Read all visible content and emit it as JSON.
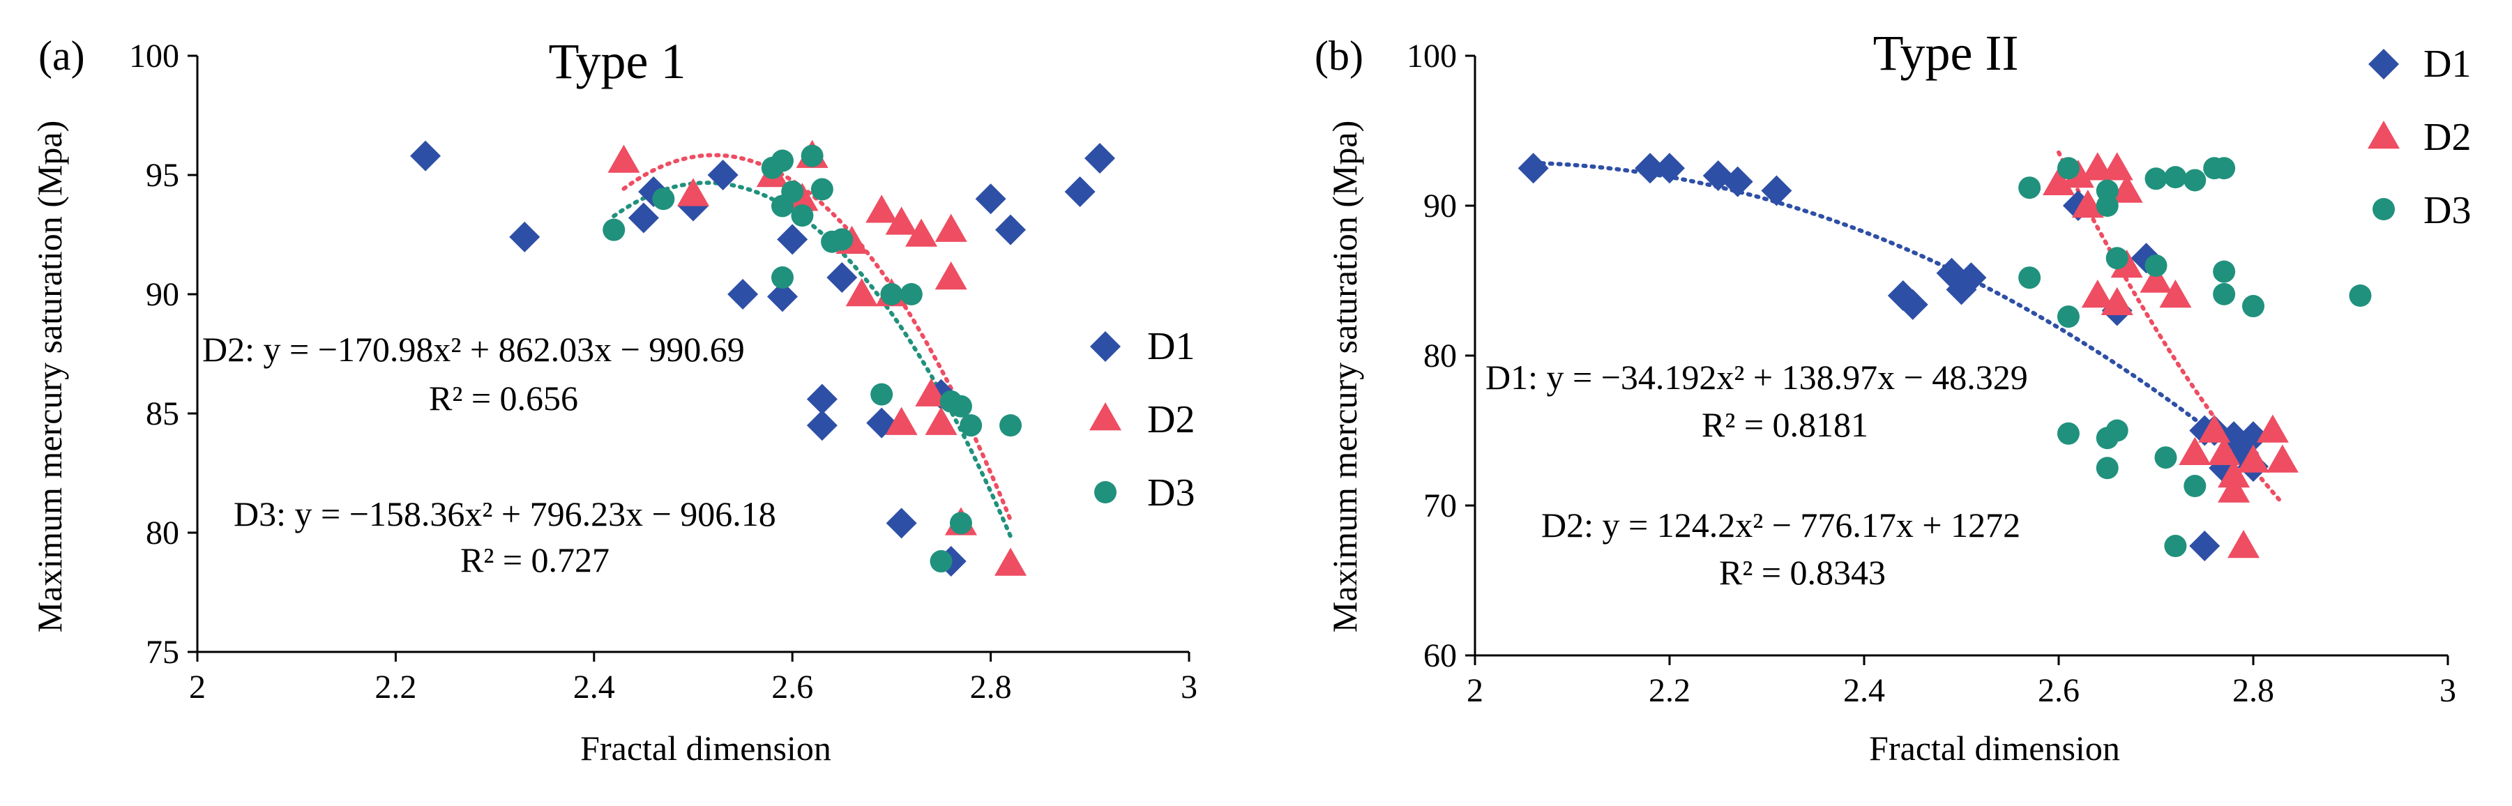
{
  "colors": {
    "D1": "#2E4FA6",
    "D2": "#EE4D62",
    "D3": "#20917D"
  },
  "chart_data": [
    {
      "type": "scatter",
      "panel_label": "(a)",
      "title": "Type 1",
      "xlabel": "Fractal dimension",
      "ylabel": "Maximum mercury saturation (Mpa)",
      "xlim": [
        2,
        3
      ],
      "ylim": [
        75,
        100
      ],
      "xticks": [
        2,
        2.2,
        2.4,
        2.6,
        2.8,
        3
      ],
      "xtick_labels": [
        "2",
        "2.2",
        "2.4",
        "2.6",
        "2.8",
        "3"
      ],
      "yticks": [
        75,
        80,
        85,
        90,
        95,
        100
      ],
      "ytick_labels": [
        "75",
        "80",
        "85",
        "90",
        "95",
        "100"
      ],
      "legend": [
        "D1",
        "D2",
        "D3"
      ],
      "series": [
        {
          "name": "D1",
          "marker": "diamond",
          "points": [
            [
              2.23,
              95.8
            ],
            [
              2.33,
              92.4
            ],
            [
              2.45,
              93.2
            ],
            [
              2.46,
              94.3
            ],
            [
              2.5,
              93.7
            ],
            [
              2.53,
              95
            ],
            [
              2.55,
              90
            ],
            [
              2.59,
              89.9
            ],
            [
              2.6,
              92.3
            ],
            [
              2.63,
              85.6
            ],
            [
              2.63,
              84.5
            ],
            [
              2.65,
              90.7
            ],
            [
              2.69,
              84.6
            ],
            [
              2.71,
              80.4
            ],
            [
              2.75,
              85.8
            ],
            [
              2.76,
              78.8
            ],
            [
              2.8,
              94
            ],
            [
              2.82,
              92.7
            ],
            [
              2.89,
              94.3
            ],
            [
              2.91,
              95.7
            ]
          ]
        },
        {
          "name": "D2",
          "marker": "triangle",
          "points": [
            [
              2.43,
              95.6
            ],
            [
              2.5,
              94.2
            ],
            [
              2.58,
              95
            ],
            [
              2.61,
              94
            ],
            [
              2.62,
              95.8
            ],
            [
              2.66,
              92.2
            ],
            [
              2.67,
              90
            ],
            [
              2.69,
              93.5
            ],
            [
              2.7,
              90
            ],
            [
              2.71,
              93
            ],
            [
              2.71,
              84.6
            ],
            [
              2.73,
              92.5
            ],
            [
              2.74,
              85.8
            ],
            [
              2.75,
              84.6
            ],
            [
              2.76,
              92.7
            ],
            [
              2.76,
              90.7
            ],
            [
              2.77,
              80.4
            ],
            [
              2.82,
              78.7
            ]
          ]
        },
        {
          "name": "D3",
          "marker": "circle",
          "points": [
            [
              2.42,
              92.7
            ],
            [
              2.47,
              94
            ],
            [
              2.58,
              95.3
            ],
            [
              2.59,
              95.6
            ],
            [
              2.59,
              93.7
            ],
            [
              2.6,
              94.3
            ],
            [
              2.61,
              93.3
            ],
            [
              2.59,
              90.7
            ],
            [
              2.62,
              95.8
            ],
            [
              2.63,
              94.4
            ],
            [
              2.64,
              92.2
            ],
            [
              2.65,
              92.3
            ],
            [
              2.7,
              90
            ],
            [
              2.72,
              90
            ],
            [
              2.69,
              85.8
            ],
            [
              2.76,
              85.5
            ],
            [
              2.77,
              85.3
            ],
            [
              2.78,
              84.5
            ],
            [
              2.82,
              84.5
            ],
            [
              2.77,
              80.4
            ],
            [
              2.75,
              78.8
            ]
          ]
        }
      ],
      "fits": [
        {
          "name": "D2",
          "a": -170.98,
          "b": 862.03,
          "c": -990.69,
          "x_range": [
            2.43,
            2.82
          ]
        },
        {
          "name": "D3",
          "a": -158.36,
          "b": 796.23,
          "c": -906.18,
          "x_range": [
            2.42,
            2.82
          ]
        }
      ],
      "equations": [
        {
          "text": "D2: y = −170.98x² + 862.03x − 990.69",
          "r2": "R² = 0.656"
        },
        {
          "text": "D3: y = −158.36x² + 796.23x − 906.18",
          "r2": "R² = 0.727"
        }
      ]
    },
    {
      "type": "scatter",
      "panel_label": "(b)",
      "title": "Type II",
      "xlabel": "Fractal dimension",
      "ylabel": "Maximum mercury saturation (Mpa)",
      "xlim": [
        2,
        3
      ],
      "ylim": [
        60,
        100
      ],
      "xticks": [
        2,
        2.2,
        2.4,
        2.6,
        2.8,
        3
      ],
      "xtick_labels": [
        "2",
        "2.2",
        "2.4",
        "2.6",
        "2.8",
        "3"
      ],
      "yticks": [
        60,
        70,
        80,
        90,
        100
      ],
      "ytick_labels": [
        "60",
        "70",
        "80",
        "90",
        "100"
      ],
      "legend": [
        "D1",
        "D2",
        "D3"
      ],
      "series": [
        {
          "name": "D1",
          "marker": "diamond",
          "points": [
            [
              2.06,
              92.5
            ],
            [
              2.18,
              92.5
            ],
            [
              2.2,
              92.5
            ],
            [
              2.25,
              92
            ],
            [
              2.27,
              91.6
            ],
            [
              2.31,
              91
            ],
            [
              2.44,
              84
            ],
            [
              2.45,
              83.4
            ],
            [
              2.49,
              85.5
            ],
            [
              2.5,
              84.4
            ],
            [
              2.51,
              85.2
            ],
            [
              2.62,
              90
            ],
            [
              2.66,
              83
            ],
            [
              2.69,
              86.5
            ],
            [
              2.75,
              75
            ],
            [
              2.76,
              75
            ],
            [
              2.77,
              72.5
            ],
            [
              2.78,
              74.6
            ],
            [
              2.79,
              73.5
            ],
            [
              2.8,
              74.6
            ],
            [
              2.8,
              72.6
            ],
            [
              2.75,
              67.3
            ]
          ]
        },
        {
          "name": "D2",
          "marker": "triangle",
          "points": [
            [
              2.6,
              91.5
            ],
            [
              2.62,
              92
            ],
            [
              2.64,
              92.5
            ],
            [
              2.66,
              92.5
            ],
            [
              2.67,
              91
            ],
            [
              2.63,
              90
            ],
            [
              2.64,
              84
            ],
            [
              2.66,
              83.5
            ],
            [
              2.67,
              86
            ],
            [
              2.7,
              85
            ],
            [
              2.72,
              84
            ],
            [
              2.74,
              73.5
            ],
            [
              2.76,
              75
            ],
            [
              2.77,
              73.5
            ],
            [
              2.78,
              72
            ],
            [
              2.78,
              71
            ],
            [
              2.8,
              73
            ],
            [
              2.82,
              75
            ],
            [
              2.83,
              73
            ],
            [
              2.79,
              67.3
            ]
          ]
        },
        {
          "name": "D3",
          "marker": "circle",
          "points": [
            [
              2.57,
              91.2
            ],
            [
              2.61,
              92.5
            ],
            [
              2.65,
              90
            ],
            [
              2.65,
              91
            ],
            [
              2.7,
              91.8
            ],
            [
              2.72,
              91.9
            ],
            [
              2.74,
              91.7
            ],
            [
              2.76,
              92.5
            ],
            [
              2.77,
              92.5
            ],
            [
              2.57,
              85.2
            ],
            [
              2.61,
              82.6
            ],
            [
              2.66,
              86.5
            ],
            [
              2.7,
              86
            ],
            [
              2.77,
              85.6
            ],
            [
              2.77,
              84.1
            ],
            [
              2.8,
              83.3
            ],
            [
              2.91,
              84
            ],
            [
              2.61,
              74.8
            ],
            [
              2.65,
              74.5
            ],
            [
              2.66,
              75
            ],
            [
              2.71,
              73.2
            ],
            [
              2.65,
              72.5
            ],
            [
              2.74,
              71.3
            ],
            [
              2.72,
              67.3
            ]
          ]
        }
      ],
      "fits": [
        {
          "name": "D1",
          "a": -34.192,
          "b": 138.97,
          "c": -48.329,
          "x_range": [
            2.06,
            2.8
          ]
        },
        {
          "name": "D2",
          "a": 124.2,
          "b": -776.17,
          "c": 1272,
          "x_range": [
            2.6,
            2.83
          ]
        }
      ],
      "equations": [
        {
          "text": "D1: y = −34.192x² + 138.97x − 48.329",
          "r2": "R² = 0.8181"
        },
        {
          "text": "D2: y = 124.2x² − 776.17x + 1272",
          "r2": "R² = 0.8343"
        }
      ]
    }
  ]
}
